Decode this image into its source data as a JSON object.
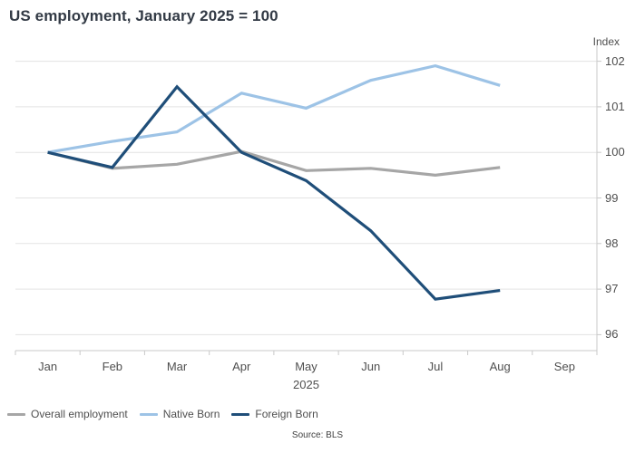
{
  "title": "US employment, January 2025 = 100",
  "axis": {
    "unit_label": "Index"
  },
  "source": "Source: BLS",
  "colors": {
    "grid": "#e3e3e3",
    "axis": "#c9c9c9",
    "text": "#4f4f4f",
    "title": "#323a45",
    "overall": "#a6a6a6",
    "native": "#9dc3e6",
    "foreign": "#1f4e79"
  },
  "chart_data": {
    "type": "line",
    "x_axis_categories": [
      "Jan",
      "Feb",
      "Mar",
      "Apr",
      "May",
      "Jun",
      "Jul",
      "Aug",
      "Sep"
    ],
    "x_axis_year": "2025",
    "yticks": [
      96,
      97,
      98,
      99,
      100,
      101,
      102
    ],
    "ylim": [
      95.65,
      102.35
    ],
    "grid": true,
    "legend_position": "bottom-left",
    "series": [
      {
        "name": "Overall employment",
        "color": "#a6a6a6",
        "values": [
          100,
          99.65,
          99.74,
          100.02,
          99.6,
          99.65,
          99.5,
          99.67
        ]
      },
      {
        "name": "Native Born",
        "color": "#9dc3e6",
        "values": [
          100,
          100.24,
          100.45,
          101.3,
          100.97,
          101.58,
          101.9,
          101.47
        ]
      },
      {
        "name": "Foreign Born",
        "color": "#1f4e79",
        "values": [
          100,
          99.67,
          101.44,
          100.0,
          99.38,
          98.28,
          96.78,
          96.97
        ]
      }
    ]
  }
}
